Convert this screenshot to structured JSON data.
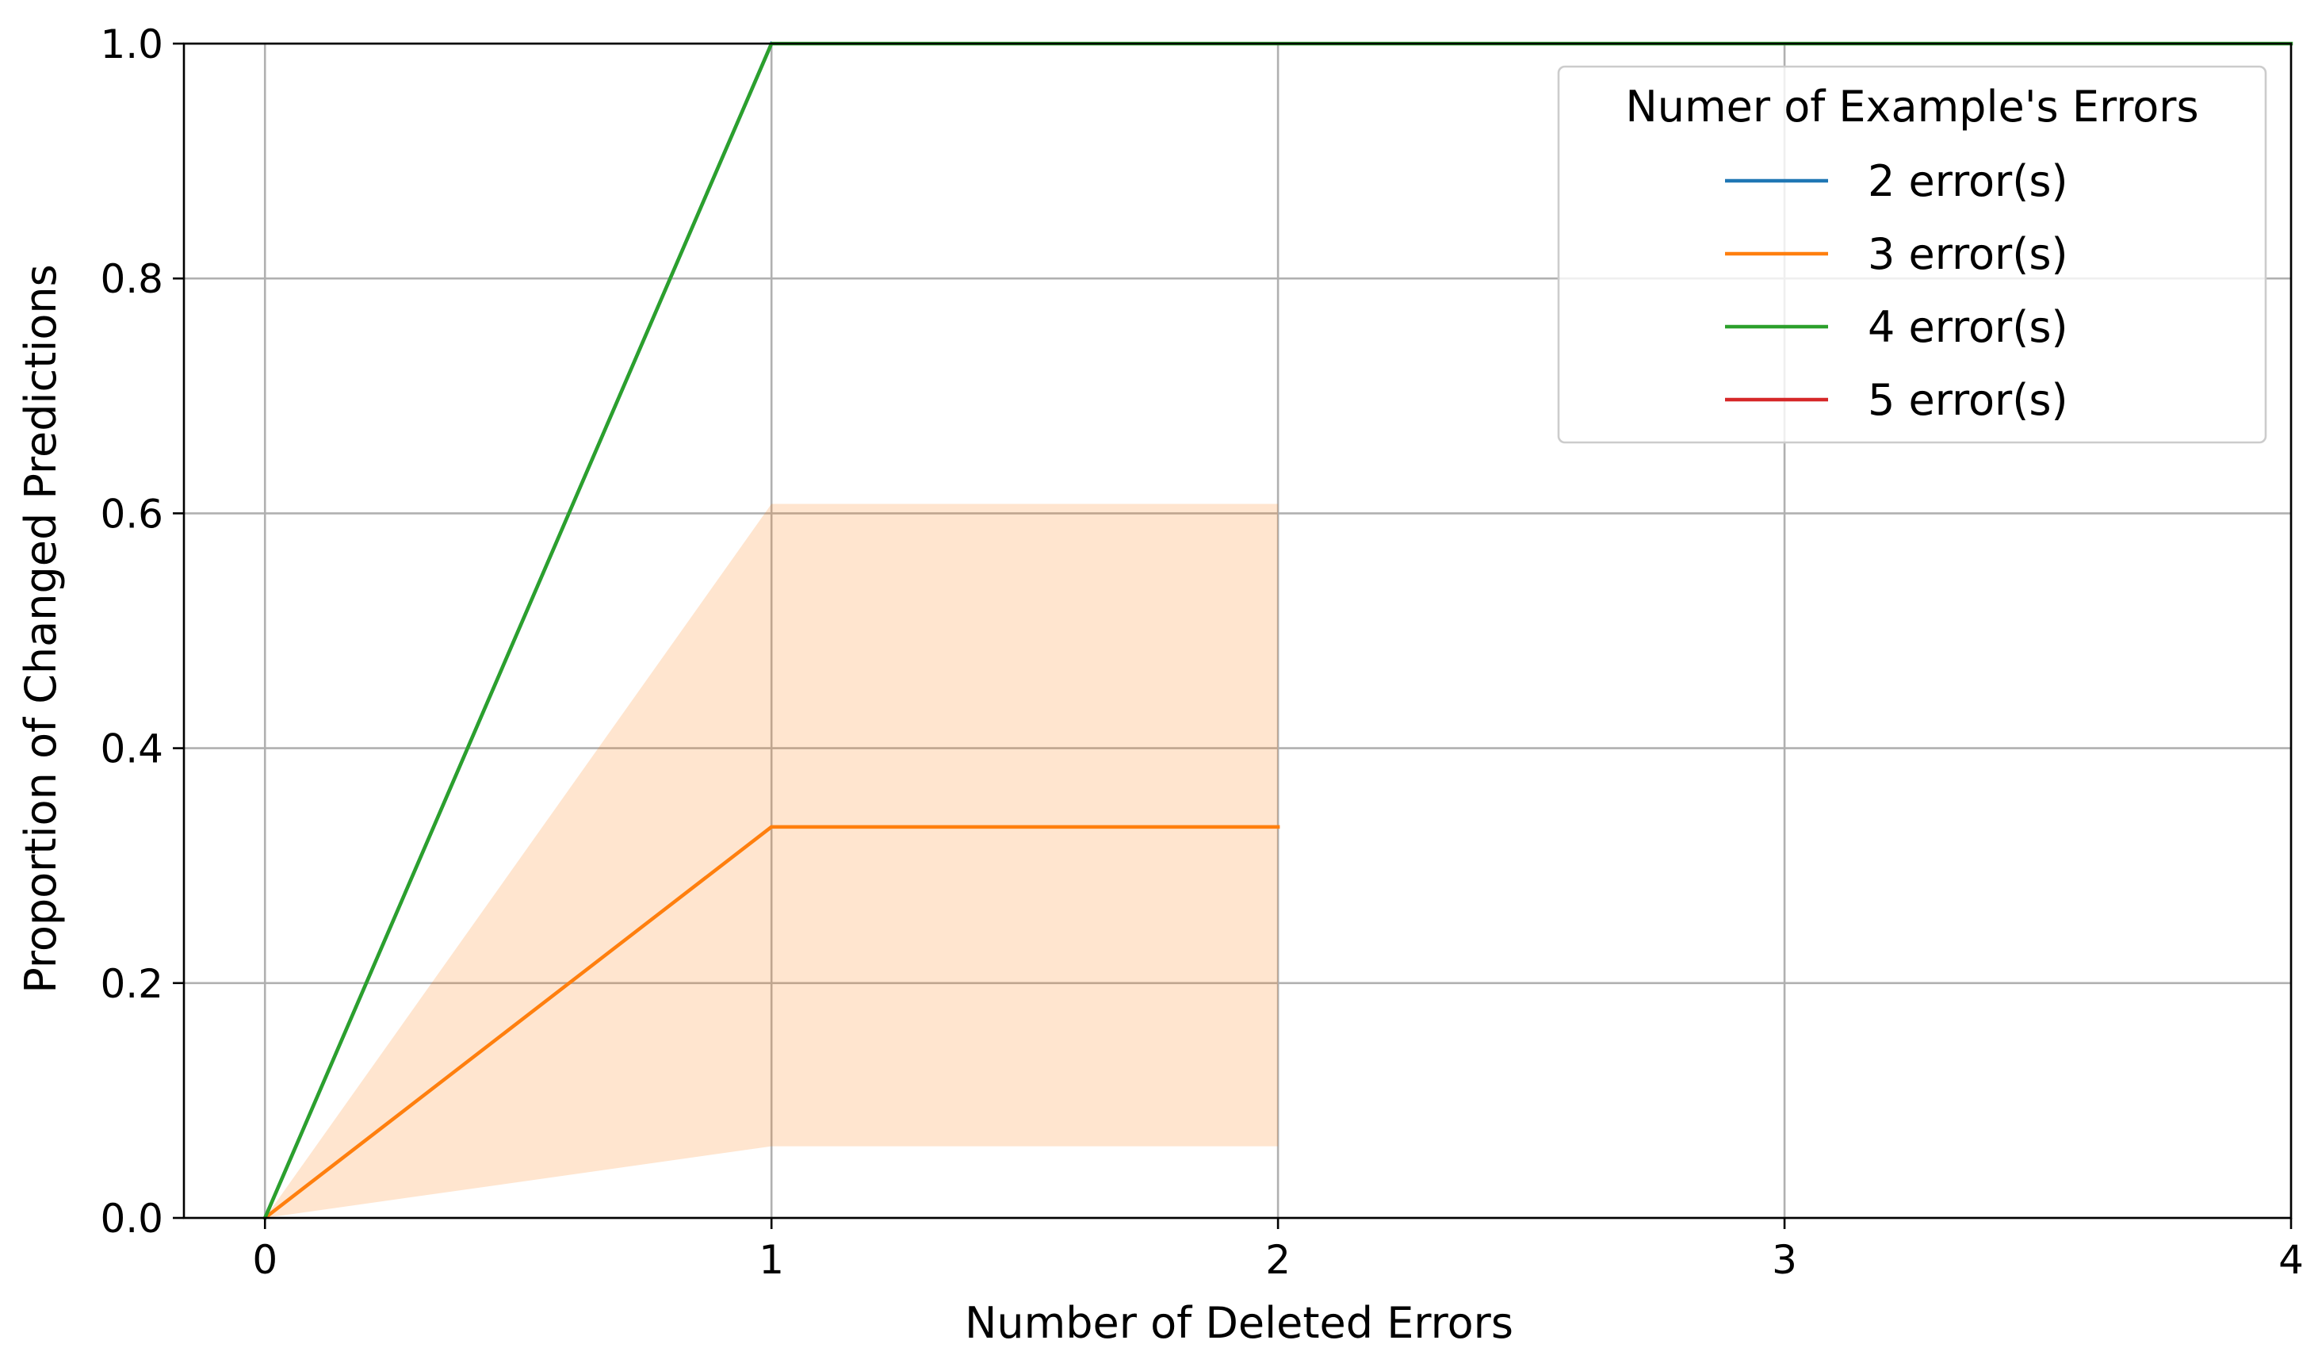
{
  "chart_data": {
    "type": "line",
    "title": "",
    "xlabel": "Number of Deleted Errors",
    "ylabel": "Proportion of Changed Predictions",
    "xlim": [
      -0.16,
      4.0
    ],
    "ylim": [
      0.0,
      1.0
    ],
    "x_ticks": [
      0,
      1,
      2,
      3,
      4
    ],
    "y_ticks": [
      0.0,
      0.2,
      0.4,
      0.6,
      0.8,
      1.0
    ],
    "x_tick_labels": [
      "0",
      "1",
      "2",
      "3",
      "4"
    ],
    "y_tick_labels": [
      "0.0",
      "0.2",
      "0.4",
      "0.6",
      "0.8",
      "1.0"
    ],
    "grid": true,
    "legend": {
      "title": "Numer of Example's Errors",
      "placement": "top-right"
    },
    "series": [
      {
        "name": "2 error(s)",
        "color": "#1f77b4",
        "x": [
          0,
          1
        ],
        "y": [
          0.0,
          1.0
        ],
        "band_lower": [],
        "band_upper": []
      },
      {
        "name": "3 error(s)",
        "color": "#ff7f0e",
        "x": [
          0,
          1,
          2
        ],
        "y": [
          0.0,
          0.333,
          0.333
        ],
        "band_lower": [
          0.0,
          0.061,
          0.061
        ],
        "band_upper": [
          0.0,
          0.608,
          0.608
        ]
      },
      {
        "name": "4 error(s)",
        "color": "#2ca02c",
        "x": [
          0,
          1,
          2,
          3,
          4
        ],
        "y": [
          0.0,
          1.0,
          1.0,
          1.0,
          1.0
        ],
        "band_lower": [],
        "band_upper": []
      },
      {
        "name": "5 error(s)",
        "color": "#d62728",
        "x": [],
        "y": [],
        "band_lower": [],
        "band_upper": []
      }
    ]
  }
}
